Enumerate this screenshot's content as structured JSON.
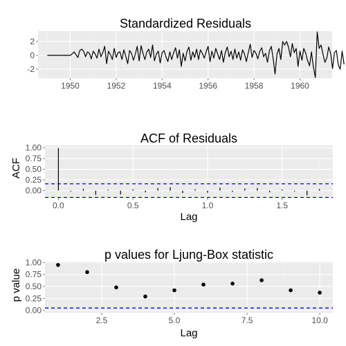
{
  "chart_data": [
    {
      "type": "line",
      "title": "Standardized Residuals",
      "xlabel": "",
      "ylabel": "",
      "xlim": [
        1948.6,
        1961.4
      ],
      "ylim": [
        -3.3,
        3.5
      ],
      "xticks": [
        1950,
        1952,
        1954,
        1956,
        1958,
        1960
      ],
      "xtick_labels": [
        "1950",
        "1952",
        "1954",
        "1956",
        "1958",
        "1960"
      ],
      "yticks": [
        2,
        0,
        -2
      ],
      "ytick_labels": [
        "2",
        "0",
        "-2"
      ],
      "reference_line": 0,
      "grid": true,
      "x_start": 1949.0,
      "x_step": 0.0833333,
      "values": [
        0.0,
        0.0,
        0.0,
        0.0,
        0.0,
        0.0,
        0.0,
        0.0,
        0.0,
        0.0,
        0.0,
        0.0,
        0.0,
        0.2,
        0.5,
        0.1,
        -0.3,
        0.7,
        0.9,
        0.6,
        -0.2,
        0.5,
        0.3,
        -0.5,
        0.6,
        0.2,
        -0.4,
        0.9,
        -0.2,
        0.4,
        1.3,
        -1.2,
        0.6,
        0.1,
        -0.6,
        1.0,
        -0.3,
        0.4,
        0.5,
        -0.6,
        0.8,
        -0.1,
        -1.2,
        0.7,
        0.3,
        -0.7,
        0.2,
        1.3,
        -0.8,
        1.4,
        0.3,
        -0.6,
        0.5,
        0.9,
        -0.3,
        1.5,
        -0.8,
        0.2,
        0.6,
        -1.1,
        0.4,
        0.7,
        -0.2,
        -0.9,
        0.5,
        -0.6,
        0.4,
        1.1,
        -0.4,
        0.8,
        -1.6,
        0.3,
        -0.8,
        0.6,
        1.2,
        -0.7,
        0.5,
        -0.3,
        0.9,
        -0.6,
        0.8,
        0.3,
        -0.4,
        0.5,
        1.3,
        -0.9,
        0.6,
        -0.4,
        1.0,
        0.2,
        -0.6,
        0.7,
        -1.0,
        0.4,
        1.2,
        -0.2,
        0.6,
        -0.6,
        0.9,
        -0.4,
        0.5,
        -0.7,
        0.8,
        0.2,
        -0.9,
        0.4,
        1.6,
        -0.3,
        0.7,
        0.3,
        -0.5,
        0.6,
        1.1,
        -0.2,
        0.3,
        -1.0,
        0.6,
        1.3,
        -0.5,
        -2.7,
        0.2,
        1.0,
        -0.6,
        2.0,
        1.5,
        2.0,
        1.2,
        -0.2,
        1.7,
        0.4,
        1.0,
        -1.6,
        0.6,
        -0.7,
        1.0,
        0.3,
        -0.8,
        -1.5,
        0.5,
        -1.7,
        -3.2,
        3.4,
        1.0,
        1.5,
        0.2,
        -1.0,
        -0.4,
        1.2,
        0.3,
        -1.9,
        0.4,
        0.7,
        -1.4,
        -2.0,
        0.6,
        -1.3
      ]
    },
    {
      "type": "bar",
      "title": "ACF of Residuals",
      "xlabel": "Lag",
      "ylabel": "ACF",
      "xlim": [
        -0.09,
        1.84
      ],
      "ylim": [
        -0.17,
        1.06
      ],
      "xticks": [
        0.0,
        0.5,
        1.0,
        1.5
      ],
      "xtick_labels": [
        "0.0",
        "0.5",
        "1.0",
        "1.5"
      ],
      "yticks": [
        1.0,
        0.75,
        0.5,
        0.25,
        0.0
      ],
      "ytick_labels": [
        "1.00",
        "0.75",
        "0.50",
        "0.25",
        "0.00"
      ],
      "confidence_band": [
        0.16,
        -0.16
      ],
      "grid": true,
      "lags": [
        0.0,
        0.0833,
        0.1667,
        0.25,
        0.3333,
        0.4167,
        0.5,
        0.5833,
        0.6667,
        0.75,
        0.8333,
        0.9167,
        1.0,
        1.0833,
        1.1667,
        1.25,
        1.3333,
        1.4167,
        1.5,
        1.5833,
        1.6667,
        1.75
      ],
      "values": [
        1.0,
        -0.02,
        0.04,
        -0.1,
        0.02,
        -0.09,
        0.03,
        -0.04,
        0.06,
        0.08,
        -0.06,
        0.03,
        -0.05,
        0.07,
        -0.03,
        0.05,
        0.06,
        -0.04,
        0.03,
        -0.02,
        -0.11,
        0.04
      ]
    },
    {
      "type": "scatter",
      "title": "p values for Ljung-Box statistic",
      "xlabel": "Lag",
      "ylabel": "p value",
      "xlim": [
        0.55,
        10.45
      ],
      "ylim": [
        -0.05,
        1.02
      ],
      "xticks": [
        2.5,
        5.0,
        7.5,
        10.0
      ],
      "xtick_labels": [
        "2.5",
        "5.0",
        "7.5",
        "10.0"
      ],
      "yticks": [
        1.0,
        0.75,
        0.5,
        0.25,
        0.0
      ],
      "ytick_labels": [
        "1.00",
        "0.75",
        "0.50",
        "0.25",
        "0.00"
      ],
      "threshold": 0.05,
      "grid": true,
      "x": [
        1,
        2,
        3,
        4,
        5,
        6,
        7,
        8,
        9,
        10
      ],
      "y": [
        0.95,
        0.8,
        0.48,
        0.29,
        0.42,
        0.54,
        0.56,
        0.63,
        0.42,
        0.37
      ]
    }
  ],
  "colors": {
    "panel": "#ebebeb",
    "grid_major": "#ffffff",
    "grid_minor": "#f2f2f2",
    "line": "#000000",
    "reference": "#ffffff",
    "band": "#0000ff"
  }
}
